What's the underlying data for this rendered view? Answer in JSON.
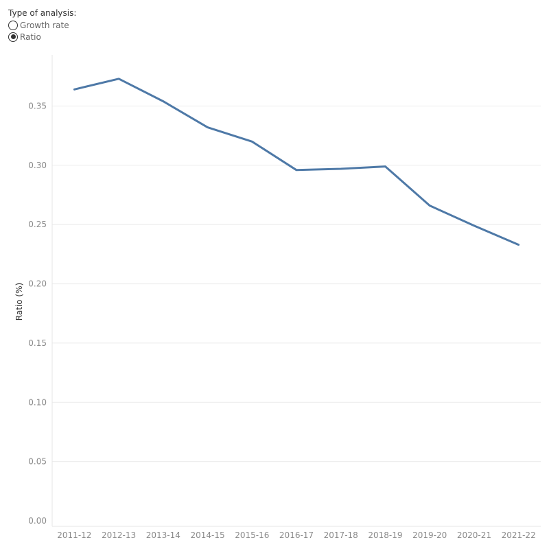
{
  "filter": {
    "title": "Type of analysis:",
    "options": [
      {
        "label": "Growth rate",
        "selected": false
      },
      {
        "label": "Ratio",
        "selected": true
      }
    ]
  },
  "chart_data": {
    "type": "line",
    "categories": [
      "2011-12",
      "2012-13",
      "2013-14",
      "2014-15",
      "2015-16",
      "2016-17",
      "2017-18",
      "2018-19",
      "2019-20",
      "2020-21",
      "2021-22"
    ],
    "series": [
      {
        "values": [
          0.364,
          0.373,
          0.354,
          0.332,
          0.32,
          0.296,
          0.297,
          0.299,
          0.266,
          0.249,
          0.233
        ]
      }
    ],
    "ylabel": "Ratio (%)",
    "xlabel": "",
    "ylim": [
      0,
      0.38
    ],
    "yticks": [
      "0.00",
      "0.05",
      "0.10",
      "0.15",
      "0.20",
      "0.25",
      "0.30",
      "0.35"
    ],
    "line_color": "#4e79a7",
    "grid": true
  }
}
